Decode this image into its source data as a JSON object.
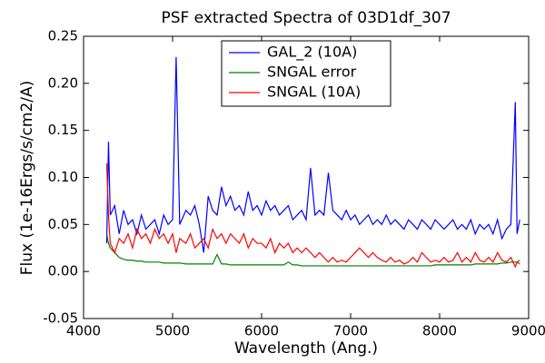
{
  "chart_data": {
    "type": "line",
    "title": "PSF extracted Spectra of 03D1df_307",
    "title_color": "#ff0000",
    "xlabel": "Wavelength (Ang.)",
    "ylabel": "Flux (1e-16Ergs/s/cm2/A)",
    "x": [
      4260,
      4280,
      4300,
      4350,
      4400,
      4450,
      4500,
      4550,
      4600,
      4650,
      4700,
      4750,
      4800,
      4850,
      4900,
      4950,
      5000,
      5040,
      5080,
      5150,
      5200,
      5250,
      5300,
      5350,
      5400,
      5450,
      5500,
      5550,
      5600,
      5650,
      5700,
      5750,
      5800,
      5850,
      5900,
      5950,
      6000,
      6050,
      6100,
      6150,
      6200,
      6250,
      6300,
      6350,
      6400,
      6450,
      6500,
      6550,
      6600,
      6650,
      6700,
      6750,
      6800,
      6850,
      6900,
      6950,
      7000,
      7050,
      7100,
      7150,
      7200,
      7250,
      7300,
      7350,
      7400,
      7450,
      7500,
      7550,
      7600,
      7650,
      7700,
      7750,
      7800,
      7850,
      7900,
      7950,
      8000,
      8050,
      8100,
      8150,
      8200,
      8250,
      8300,
      8350,
      8400,
      8450,
      8500,
      8550,
      8600,
      8650,
      8700,
      8750,
      8800,
      8850,
      8870,
      8900
    ],
    "series": [
      {
        "name": "GAL_2 (10A)",
        "color": "#0000ff",
        "values": [
          0.03,
          0.138,
          0.06,
          0.07,
          0.04,
          0.065,
          0.05,
          0.055,
          0.04,
          0.06,
          0.045,
          0.05,
          0.055,
          0.04,
          0.06,
          0.05,
          0.055,
          0.228,
          0.05,
          0.065,
          0.06,
          0.07,
          0.05,
          0.02,
          0.08,
          0.065,
          0.06,
          0.09,
          0.07,
          0.08,
          0.065,
          0.07,
          0.06,
          0.085,
          0.065,
          0.07,
          0.06,
          0.075,
          0.065,
          0.07,
          0.06,
          0.065,
          0.07,
          0.055,
          0.06,
          0.065,
          0.055,
          0.11,
          0.06,
          0.065,
          0.06,
          0.105,
          0.065,
          0.06,
          0.055,
          0.065,
          0.055,
          0.06,
          0.05,
          0.055,
          0.06,
          0.05,
          0.055,
          0.05,
          0.06,
          0.05,
          0.055,
          0.05,
          0.045,
          0.055,
          0.05,
          0.045,
          0.055,
          0.05,
          0.045,
          0.055,
          0.05,
          0.045,
          0.05,
          0.055,
          0.045,
          0.05,
          0.045,
          0.055,
          0.04,
          0.05,
          0.045,
          0.05,
          0.04,
          0.055,
          0.035,
          0.045,
          0.05,
          0.18,
          0.04,
          0.055
        ]
      },
      {
        "name": "SNGAL error",
        "color": "#008000",
        "values": [
          0.04,
          0.03,
          0.025,
          0.02,
          0.015,
          0.013,
          0.012,
          0.012,
          0.011,
          0.011,
          0.01,
          0.01,
          0.01,
          0.01,
          0.009,
          0.009,
          0.009,
          0.009,
          0.009,
          0.008,
          0.008,
          0.008,
          0.008,
          0.008,
          0.008,
          0.008,
          0.018,
          0.008,
          0.008,
          0.007,
          0.007,
          0.007,
          0.007,
          0.007,
          0.007,
          0.007,
          0.007,
          0.007,
          0.007,
          0.007,
          0.007,
          0.007,
          0.01,
          0.007,
          0.007,
          0.006,
          0.006,
          0.006,
          0.006,
          0.006,
          0.006,
          0.006,
          0.006,
          0.006,
          0.006,
          0.006,
          0.006,
          0.006,
          0.006,
          0.006,
          0.006,
          0.006,
          0.006,
          0.006,
          0.006,
          0.006,
          0.006,
          0.006,
          0.006,
          0.006,
          0.006,
          0.006,
          0.006,
          0.006,
          0.006,
          0.007,
          0.007,
          0.007,
          0.007,
          0.007,
          0.007,
          0.007,
          0.007,
          0.007,
          0.008,
          0.008,
          0.008,
          0.008,
          0.008,
          0.008,
          0.009,
          0.009,
          0.01,
          0.01,
          0.01,
          0.012
        ]
      },
      {
        "name": "SNGAL (10A)",
        "color": "#ff0000",
        "values": [
          0.115,
          0.06,
          0.03,
          0.02,
          0.035,
          0.03,
          0.04,
          0.025,
          0.045,
          0.035,
          0.04,
          0.03,
          0.045,
          0.035,
          0.04,
          0.03,
          0.04,
          0.02,
          0.035,
          0.03,
          0.04,
          0.025,
          0.03,
          0.035,
          0.025,
          0.045,
          0.035,
          0.04,
          0.03,
          0.04,
          0.035,
          0.03,
          0.04,
          0.025,
          0.035,
          0.03,
          0.03,
          0.025,
          0.035,
          0.02,
          0.03,
          0.025,
          0.03,
          0.02,
          0.025,
          0.02,
          0.025,
          0.02,
          0.015,
          0.02,
          0.015,
          0.01,
          0.015,
          0.01,
          0.012,
          0.01,
          0.015,
          0.02,
          0.025,
          0.02,
          0.015,
          0.02,
          0.015,
          0.012,
          0.01,
          0.015,
          0.01,
          0.012,
          0.008,
          0.01,
          0.015,
          0.01,
          0.02,
          0.015,
          0.01,
          0.012,
          0.01,
          0.015,
          0.01,
          0.012,
          0.02,
          0.01,
          0.015,
          0.01,
          0.02,
          0.012,
          0.01,
          0.015,
          0.01,
          0.02,
          0.012,
          0.01,
          0.015,
          0.005,
          0.01,
          0.008
        ]
      }
    ],
    "xlim": [
      4000,
      9000
    ],
    "xticks": [
      4000,
      5000,
      6000,
      7000,
      8000,
      9000
    ],
    "ylim": [
      -0.05,
      0.25
    ],
    "yticks": [
      -0.05,
      {
        "value": 0,
        "label": "0.00"
      },
      0.05,
      {
        "value": 0.1,
        "label": "0.10"
      },
      0.15,
      {
        "value": 0.2,
        "label": "0.20"
      },
      0.25
    ],
    "grid": false,
    "legend": "upper center"
  }
}
